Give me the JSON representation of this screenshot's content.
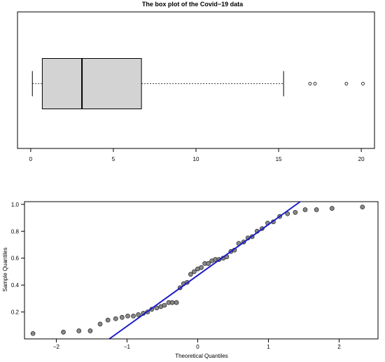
{
  "chart_data": [
    {
      "type": "boxplot",
      "title": "The box plot of the Covid−19 data",
      "orientation": "horizontal",
      "box": {
        "min": 0.1,
        "q1": 0.7,
        "median": 3.1,
        "q3": 6.7,
        "whisker_high": 15.3
      },
      "outliers": [
        16.9,
        17.2,
        19.1,
        20.1
      ],
      "xlim": [
        -0.8,
        20.8
      ],
      "xticks": [
        0,
        5,
        10,
        15,
        20
      ],
      "tick_labels": [
        "0",
        "5",
        "10",
        "15",
        "20"
      ],
      "box_fill": "#d3d3d3"
    },
    {
      "type": "scatter",
      "title": "",
      "xlabel": "Theoretical Quantiles",
      "ylabel": "Sample Quantiles",
      "xlim": [
        -2.45,
        2.55
      ],
      "ylim": [
        0.0,
        1.02
      ],
      "xticks": [
        -2,
        -1,
        0,
        1,
        2
      ],
      "xtick_labels": [
        "−2",
        "−1",
        "0",
        "1",
        "2"
      ],
      "yticks": [
        0.2,
        0.4,
        0.6,
        0.8,
        1.0
      ],
      "ytick_labels": [
        "0.2",
        "0.4",
        "0.6",
        "0.8",
        "1.0"
      ],
      "points": [
        [
          -2.33,
          0.04
        ],
        [
          -1.9,
          0.05
        ],
        [
          -1.68,
          0.06
        ],
        [
          -1.52,
          0.06
        ],
        [
          -1.38,
          0.11
        ],
        [
          -1.27,
          0.14
        ],
        [
          -1.16,
          0.15
        ],
        [
          -1.07,
          0.16
        ],
        [
          -0.99,
          0.17
        ],
        [
          -0.91,
          0.17
        ],
        [
          -0.84,
          0.18
        ],
        [
          -0.77,
          0.19
        ],
        [
          -0.71,
          0.2
        ],
        [
          -0.65,
          0.22
        ],
        [
          -0.58,
          0.23
        ],
        [
          -0.52,
          0.24
        ],
        [
          -0.47,
          0.25
        ],
        [
          -0.41,
          0.27
        ],
        [
          -0.36,
          0.27
        ],
        [
          -0.3,
          0.27
        ],
        [
          -0.25,
          0.38
        ],
        [
          -0.2,
          0.41
        ],
        [
          -0.15,
          0.42
        ],
        [
          -0.1,
          0.48
        ],
        [
          -0.05,
          0.5
        ],
        [
          0.0,
          0.52
        ],
        [
          0.05,
          0.53
        ],
        [
          0.1,
          0.56
        ],
        [
          0.15,
          0.56
        ],
        [
          0.2,
          0.58
        ],
        [
          0.25,
          0.59
        ],
        [
          0.3,
          0.59
        ],
        [
          0.36,
          0.6
        ],
        [
          0.41,
          0.61
        ],
        [
          0.47,
          0.65
        ],
        [
          0.52,
          0.66
        ],
        [
          0.58,
          0.71
        ],
        [
          0.65,
          0.72
        ],
        [
          0.71,
          0.75
        ],
        [
          0.77,
          0.76
        ],
        [
          0.84,
          0.8
        ],
        [
          0.91,
          0.82
        ],
        [
          0.99,
          0.86
        ],
        [
          1.07,
          0.87
        ],
        [
          1.16,
          0.91
        ],
        [
          1.27,
          0.93
        ],
        [
          1.38,
          0.94
        ],
        [
          1.52,
          0.96
        ],
        [
          1.68,
          0.96
        ],
        [
          1.9,
          0.97
        ],
        [
          2.33,
          0.98
        ]
      ],
      "qq_line": {
        "x0": -1.25,
        "y0": 0.0,
        "x1": 1.45,
        "y1": 1.02,
        "color": "#1c1cc8"
      },
      "point_fill": "#888888"
    }
  ]
}
